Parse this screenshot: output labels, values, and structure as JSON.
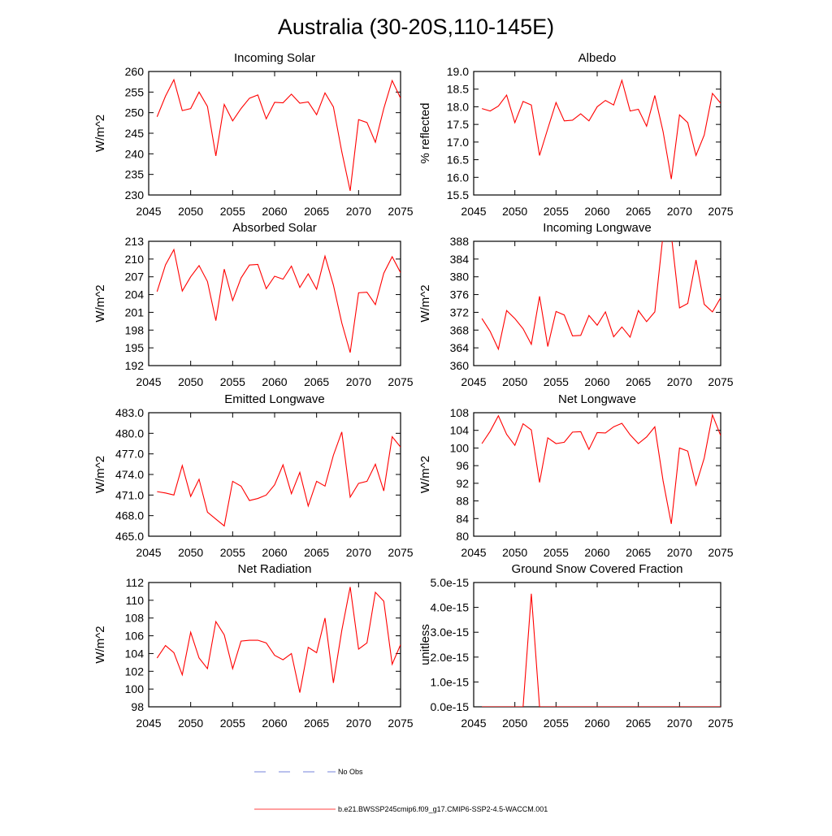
{
  "title": "Australia (30-20S,110-145E)",
  "legend": [
    {
      "name": "No Obs",
      "color": "#4a5bd0",
      "dash": true
    },
    {
      "name": "b.e21.BWSSP245cmip6.f09_g17.CMIP6-SSP2-4.5-WACCM.001",
      "color": "#ff0000",
      "dash": false
    }
  ],
  "chart_data": [
    {
      "type": "line",
      "title": "Incoming Solar",
      "y_label": "W/m^2",
      "color": "#ff0000",
      "x": [
        2046,
        2047,
        2048,
        2049,
        2050,
        2051,
        2052,
        2053,
        2054,
        2055,
        2056,
        2057,
        2058,
        2059,
        2060,
        2061,
        2062,
        2063,
        2064,
        2065,
        2066,
        2067,
        2068,
        2069,
        2070,
        2071,
        2072,
        2073,
        2074,
        2075
      ],
      "values": [
        249,
        254,
        258,
        250.5,
        251,
        255,
        251.5,
        239.5,
        252,
        248,
        251,
        253.5,
        254.3,
        248.5,
        252.5,
        252.4,
        254.5,
        252.3,
        252.6,
        249.5,
        254.8,
        251.4,
        240.5,
        231,
        248.3,
        247.6,
        242.8,
        251,
        257.8,
        253.5
      ],
      "xlim": [
        2045,
        2075
      ],
      "xticks": [
        2045,
        2050,
        2055,
        2060,
        2065,
        2070,
        2075
      ],
      "ylim": [
        230,
        260
      ],
      "yticks": [
        230,
        235,
        240,
        245,
        250,
        255,
        260
      ]
    },
    {
      "type": "line",
      "title": "Albedo",
      "y_label": "% reflected",
      "color": "#ff0000",
      "x": [
        2046,
        2047,
        2048,
        2049,
        2050,
        2051,
        2052,
        2053,
        2054,
        2055,
        2056,
        2057,
        2058,
        2059,
        2060,
        2061,
        2062,
        2063,
        2064,
        2065,
        2066,
        2067,
        2068,
        2069,
        2070,
        2071,
        2072,
        2073,
        2074,
        2075
      ],
      "values": [
        17.95,
        17.88,
        18.02,
        18.33,
        17.55,
        18.15,
        18.05,
        16.62,
        17.38,
        18.12,
        17.6,
        17.62,
        17.8,
        17.6,
        18.0,
        18.18,
        18.05,
        18.75,
        17.88,
        17.93,
        17.45,
        18.32,
        17.3,
        15.95,
        17.77,
        17.55,
        16.62,
        17.2,
        18.38,
        18.1
      ],
      "xlim": [
        2045,
        2075
      ],
      "xticks": [
        2045,
        2050,
        2055,
        2060,
        2065,
        2070,
        2075
      ],
      "ylim": [
        15.5,
        19.0
      ],
      "yticks": [
        15.5,
        {
          "value": 16,
          "label": "16.0"
        },
        16.5,
        {
          "value": 17,
          "label": "17.0"
        },
        17.5,
        {
          "value": 18,
          "label": "18.0"
        },
        18.5,
        {
          "value": 19,
          "label": "19.0"
        }
      ]
    },
    {
      "type": "line",
      "title": "Absorbed Solar",
      "y_label": "W/m^2",
      "color": "#ff0000",
      "x": [
        2046,
        2047,
        2048,
        2049,
        2050,
        2051,
        2052,
        2053,
        2054,
        2055,
        2056,
        2057,
        2058,
        2059,
        2060,
        2061,
        2062,
        2063,
        2064,
        2065,
        2066,
        2067,
        2068,
        2069,
        2070,
        2071,
        2072,
        2073,
        2074,
        2075
      ],
      "values": [
        204.5,
        209,
        211.6,
        204.6,
        207,
        208.9,
        206.2,
        199.6,
        208.3,
        203,
        206.8,
        209,
        209.1,
        205,
        207.1,
        206.6,
        208.8,
        205.2,
        207.5,
        204.9,
        210.5,
        205.6,
        199.2,
        194.2,
        204.3,
        204.4,
        202.3,
        207.6,
        210.4,
        207.7
      ],
      "xlim": [
        2045,
        2075
      ],
      "xticks": [
        2045,
        2050,
        2055,
        2060,
        2065,
        2070,
        2075
      ],
      "ylim": [
        192,
        213
      ],
      "yticks": [
        192,
        195,
        198,
        201,
        204,
        207,
        210,
        213
      ]
    },
    {
      "type": "line",
      "title": "Incoming Longwave",
      "y_label": "W/m^2",
      "color": "#ff0000",
      "x": [
        2046,
        2047,
        2048,
        2049,
        2050,
        2051,
        2052,
        2053,
        2054,
        2055,
        2056,
        2057,
        2058,
        2059,
        2060,
        2061,
        2062,
        2063,
        2064,
        2065,
        2066,
        2067,
        2068,
        2069,
        2070,
        2071,
        2072,
        2073,
        2074,
        2075
      ],
      "values": [
        370.6,
        367.7,
        363.7,
        372.4,
        370.6,
        368.3,
        364.8,
        375.6,
        364.3,
        372.2,
        371.4,
        366.7,
        366.8,
        371.3,
        369.1,
        372.1,
        366.5,
        368.7,
        366.4,
        372.4,
        369.9,
        372.1,
        389.5,
        389.5,
        373,
        374,
        383.8,
        373.8,
        372.1,
        375.3
      ],
      "xlim": [
        2045,
        2075
      ],
      "xticks": [
        2045,
        2050,
        2055,
        2060,
        2065,
        2070,
        2075
      ],
      "ylim": [
        360,
        388
      ],
      "yticks": [
        360,
        364,
        368,
        372,
        376,
        380,
        384,
        388
      ]
    },
    {
      "type": "line",
      "title": "Emitted Longwave",
      "y_label": "W/m^2",
      "color": "#ff0000",
      "x": [
        2046,
        2047,
        2048,
        2049,
        2050,
        2051,
        2052,
        2053,
        2054,
        2055,
        2056,
        2057,
        2058,
        2059,
        2060,
        2061,
        2062,
        2063,
        2064,
        2065,
        2066,
        2067,
        2068,
        2069,
        2070,
        2071,
        2072,
        2073,
        2074,
        2075
      ],
      "values": [
        471.5,
        471.3,
        471.0,
        475.3,
        470.8,
        473.3,
        468.5,
        467.5,
        466.5,
        473.0,
        472.3,
        470.2,
        470.5,
        471.0,
        472.5,
        475.4,
        471.2,
        474.3,
        469.4,
        473.0,
        472.3,
        476.8,
        480.2,
        470.7,
        472.7,
        473.0,
        475.5,
        471.6,
        479.5,
        478.0
      ],
      "xlim": [
        2045,
        2075
      ],
      "xticks": [
        2045,
        2050,
        2055,
        2060,
        2065,
        2070,
        2075
      ],
      "ylim": [
        465,
        483
      ],
      "yticks": [
        {
          "value": 465,
          "label": "465.0"
        },
        {
          "value": 468,
          "label": "468.0"
        },
        {
          "value": 471,
          "label": "471.0"
        },
        {
          "value": 474,
          "label": "474.0"
        },
        {
          "value": 477,
          "label": "477.0"
        },
        {
          "value": 480,
          "label": "480.0"
        },
        {
          "value": 483,
          "label": "483.0"
        }
      ]
    },
    {
      "type": "line",
      "title": "Net Longwave",
      "y_label": "W/m^2",
      "color": "#ff0000",
      "x": [
        2046,
        2047,
        2048,
        2049,
        2050,
        2051,
        2052,
        2053,
        2054,
        2055,
        2056,
        2057,
        2058,
        2059,
        2060,
        2061,
        2062,
        2063,
        2064,
        2065,
        2066,
        2067,
        2068,
        2069,
        2070,
        2071,
        2072,
        2073,
        2074,
        2075
      ],
      "values": [
        101,
        103.8,
        107.3,
        103.1,
        100.6,
        105.5,
        104.1,
        92.2,
        102.3,
        101,
        101.3,
        103.6,
        103.7,
        99.7,
        103.5,
        103.4,
        104.8,
        105.6,
        103,
        101,
        102.5,
        104.8,
        92.6,
        82.8,
        100,
        99.3,
        91.6,
        97.7,
        107.5,
        102.8
      ],
      "xlim": [
        2045,
        2075
      ],
      "xticks": [
        2045,
        2050,
        2055,
        2060,
        2065,
        2070,
        2075
      ],
      "ylim": [
        80,
        108
      ],
      "yticks": [
        80,
        84,
        88,
        92,
        96,
        100,
        104,
        108
      ]
    },
    {
      "type": "line",
      "title": "Net Radiation",
      "y_label": "W/m^2",
      "color": "#ff0000",
      "x": [
        2046,
        2047,
        2048,
        2049,
        2050,
        2051,
        2052,
        2053,
        2054,
        2055,
        2056,
        2057,
        2058,
        2059,
        2060,
        2061,
        2062,
        2063,
        2064,
        2065,
        2066,
        2067,
        2068,
        2069,
        2070,
        2071,
        2072,
        2073,
        2074,
        2075
      ],
      "values": [
        103.5,
        104.9,
        104.1,
        101.6,
        106.4,
        103.5,
        102.3,
        107.6,
        106.1,
        102.3,
        105.4,
        105.5,
        105.5,
        105.2,
        103.8,
        103.3,
        104,
        99.6,
        104.7,
        104.1,
        108,
        100.7,
        106.6,
        111.5,
        104.5,
        105.2,
        110.9,
        109.9,
        102.8,
        105.0
      ],
      "xlim": [
        2045,
        2075
      ],
      "xticks": [
        2045,
        2050,
        2055,
        2060,
        2065,
        2070,
        2075
      ],
      "ylim": [
        98,
        112
      ],
      "yticks": [
        98,
        100,
        102,
        104,
        106,
        108,
        110,
        112
      ]
    },
    {
      "type": "line",
      "title": "Ground Snow Covered Fraction",
      "y_label": "unitless",
      "color": "#ff0000",
      "x": [
        2046,
        2047,
        2048,
        2049,
        2050,
        2051,
        2052,
        2053,
        2054,
        2055,
        2056,
        2057,
        2058,
        2059,
        2060,
        2061,
        2062,
        2063,
        2064,
        2065,
        2066,
        2067,
        2068,
        2069,
        2070,
        2071,
        2072,
        2073,
        2074,
        2075
      ],
      "values": [
        0,
        0,
        0,
        0,
        0,
        0,
        4.55e-15,
        0,
        0,
        0,
        0,
        0,
        0,
        0,
        0,
        0,
        0,
        0,
        0,
        0,
        0,
        0,
        0,
        0,
        0,
        0,
        0,
        0,
        0,
        0
      ],
      "xlim": [
        2045,
        2075
      ],
      "xticks": [
        2045,
        2050,
        2055,
        2060,
        2065,
        2070,
        2075
      ],
      "ylim": [
        0,
        5e-15
      ],
      "yticks": [
        {
          "value": 0,
          "label": "0.0e-15"
        },
        {
          "value": 1e-15,
          "label": "1.0e-15"
        },
        {
          "value": 2e-15,
          "label": "2.0e-15"
        },
        {
          "value": 3e-15,
          "label": "3.0e-15"
        },
        {
          "value": 4e-15,
          "label": "4.0e-15"
        },
        {
          "value": 5e-15,
          "label": "5.0e-15"
        }
      ]
    }
  ]
}
